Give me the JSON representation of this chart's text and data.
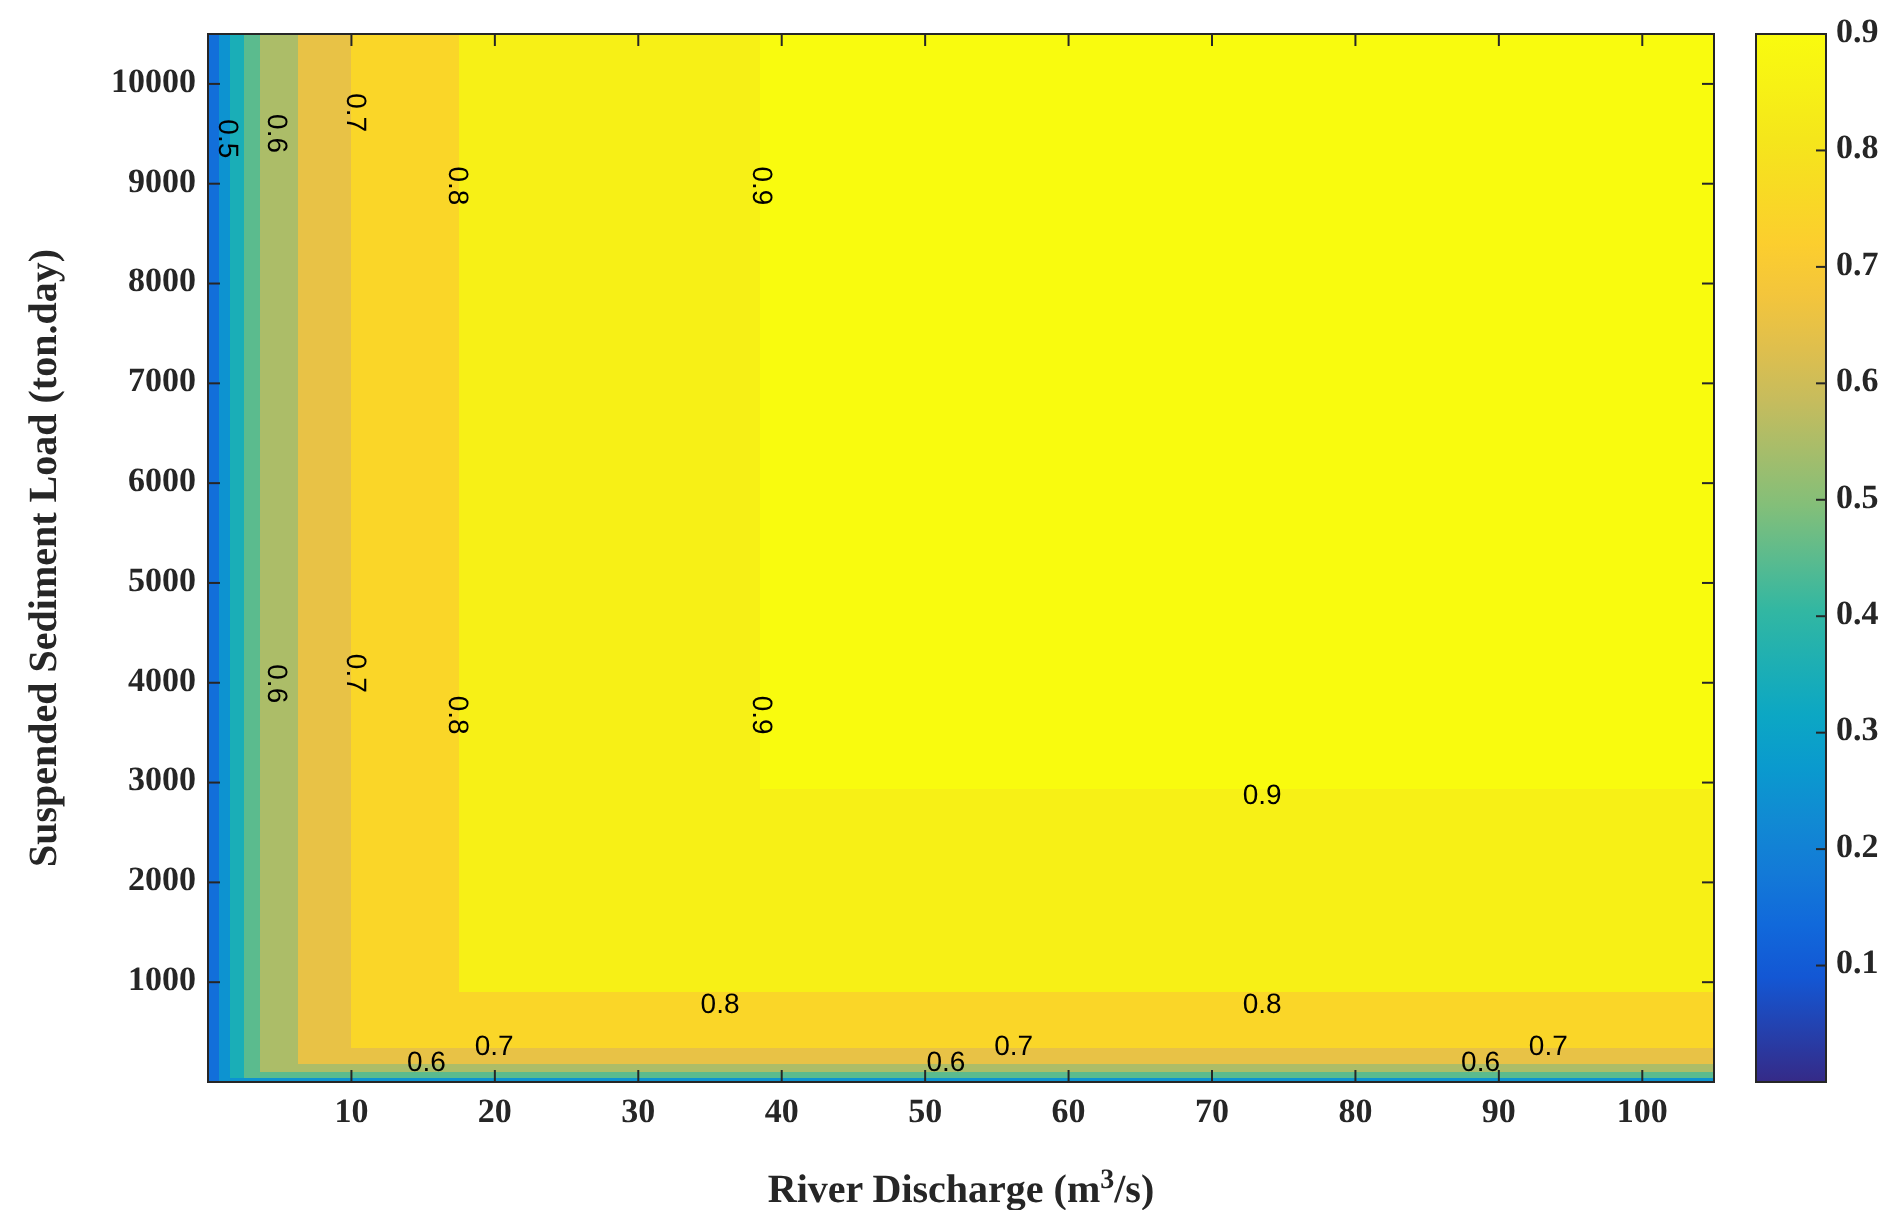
{
  "chart_data": {
    "type": "heatmap",
    "xlabel": "River Discharge (m$^{3}$/s)",
    "ylabel": "Suspended Sediment Load (ton.day)",
    "x": [
      0.4,
      1.15,
      2,
      3.05,
      4.95,
      8.15,
      13.75,
      28,
      49.58,
      71.75,
      93.92
    ],
    "y": [
      9555,
      7665,
      5775,
      3885,
      1920,
      620,
      260,
      140,
      70,
      20
    ],
    "cells": [
      [
        0.15,
        0.25,
        0.35,
        0.45,
        0.55,
        0.65,
        0.75,
        0.85,
        0.9,
        0.9,
        0.9
      ],
      [
        0.15,
        0.25,
        0.35,
        0.45,
        0.55,
        0.65,
        0.75,
        0.85,
        0.9,
        0.9,
        0.9
      ],
      [
        0.15,
        0.25,
        0.35,
        0.45,
        0.55,
        0.65,
        0.75,
        0.85,
        0.9,
        0.9,
        0.9
      ],
      [
        0.15,
        0.25,
        0.35,
        0.45,
        0.55,
        0.65,
        0.75,
        0.85,
        0.9,
        0.9,
        0.9
      ],
      [
        0.15,
        0.25,
        0.35,
        0.45,
        0.55,
        0.65,
        0.75,
        0.85,
        0.85,
        0.85,
        0.85
      ],
      [
        0.15,
        0.25,
        0.35,
        0.45,
        0.55,
        0.65,
        0.75,
        0.75,
        0.75,
        0.75,
        0.75
      ],
      [
        0.15,
        0.25,
        0.35,
        0.45,
        0.55,
        0.65,
        0.65,
        0.65,
        0.65,
        0.65,
        0.65
      ],
      [
        0.15,
        0.25,
        0.35,
        0.45,
        0.55,
        0.55,
        0.55,
        0.55,
        0.55,
        0.55,
        0.55
      ],
      [
        0.15,
        0.25,
        0.35,
        0.45,
        0.45,
        0.45,
        0.45,
        0.45,
        0.45,
        0.45,
        0.45
      ],
      [
        0.15,
        0.25,
        0.25,
        0.25,
        0.25,
        0.25,
        0.25,
        0.25,
        0.25,
        0.25,
        0.25
      ]
    ],
    "xlim": [
      0,
      105
    ],
    "xticks": [
      10,
      20,
      30,
      40,
      50,
      60,
      70,
      80,
      90,
      100
    ],
    "ylim": [
      0,
      10500
    ],
    "yticks": [
      1000,
      2000,
      3000,
      4000,
      5000,
      6000,
      7000,
      8000,
      9000,
      10000
    ],
    "clim": [
      0,
      0.9
    ],
    "cticks": [
      0.1,
      0.2,
      0.3,
      0.4,
      0.5,
      0.6,
      0.7,
      0.8,
      0.9
    ],
    "annotations": [
      "0.5",
      "0.6",
      "0.7",
      "0.8",
      "0.9",
      "0.6",
      "0.7",
      "0.8",
      "0.9",
      "0.9",
      "0.8",
      "0.8",
      "0.7",
      "0.7",
      "0.7",
      "0.6",
      "0.6",
      "0.6"
    ]
  }
}
